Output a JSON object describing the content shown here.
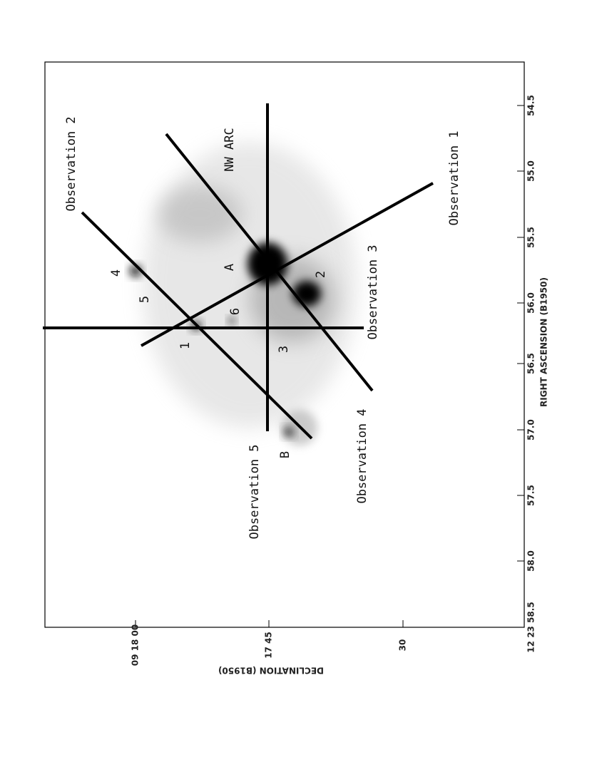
{
  "figure": {
    "ra_axis": {
      "label": "RIGHT ASCENSION (B1950)",
      "ticks": [
        "54.5",
        "55.0",
        "55.5",
        "56.0",
        "56.5",
        "57.0",
        "57.5",
        "58.0",
        "12 23 58.5"
      ]
    },
    "dec_axis": {
      "label": "DECLINATION (B1950)",
      "ticks": [
        "09 18 00",
        "17 45",
        "30"
      ]
    },
    "observations": [
      "Observation 1",
      "Observation 2",
      "Observation 3",
      "Observation 4",
      "Observation 5"
    ],
    "region": "NW ARC",
    "sources": [
      "1",
      "2",
      "3",
      "4",
      "5",
      "6",
      "A",
      "B"
    ]
  }
}
